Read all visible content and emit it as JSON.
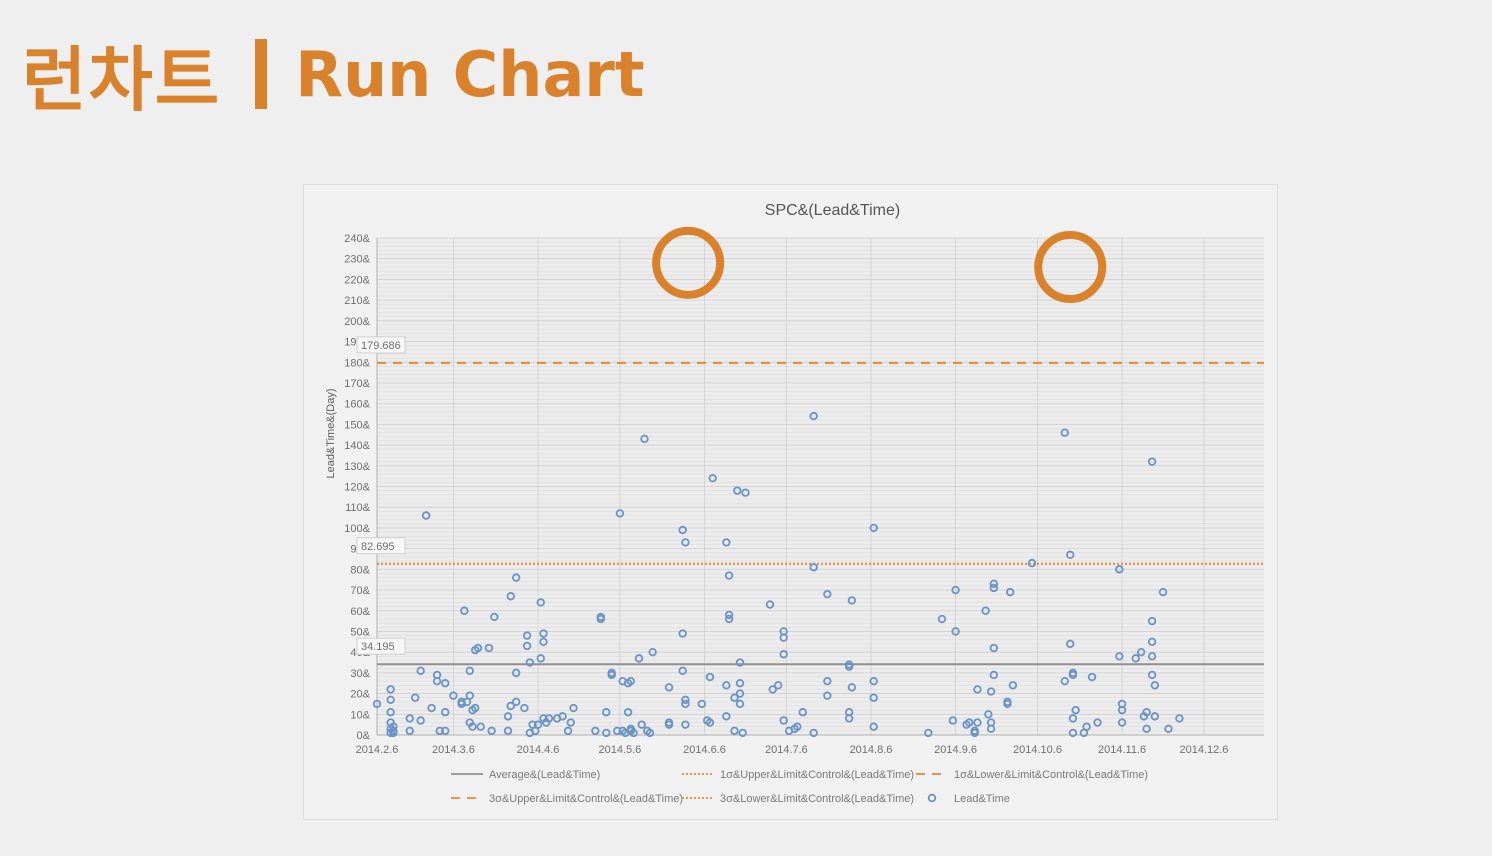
{
  "slide": {
    "title_ko": "런차트",
    "title_en": "Run Chart"
  },
  "chart_data": {
    "type": "scatter",
    "title": "SPC&(Lead&Time)",
    "ylabel": "Lead&Time&(Day)",
    "xlabel": "",
    "x_start_date": "2014-02-06",
    "x_range_days": [
      0,
      325
    ],
    "ylim": [
      0,
      240
    ],
    "y_ticks": [
      "0&",
      "10&",
      "20&",
      "30&",
      "40&",
      "50&",
      "60&",
      "70&",
      "80&",
      "90&",
      "100&",
      "110&",
      "120&",
      "130&",
      "140&",
      "150&",
      "160&",
      "170&",
      "180&",
      "190&",
      "200&",
      "210&",
      "220&",
      "230&",
      "240&"
    ],
    "x_ticks": [
      {
        "label": "2014.2.6",
        "day": 0
      },
      {
        "label": "2014.3.6",
        "day": 28
      },
      {
        "label": "2014.4.6",
        "day": 59
      },
      {
        "label": "2014.5.6",
        "day": 89
      },
      {
        "label": "2014.6.6",
        "day": 120
      },
      {
        "label": "2014.7.6",
        "day": 150
      },
      {
        "label": "2014.8.6",
        "day": 181
      },
      {
        "label": "2014.9.6",
        "day": 212
      },
      {
        "label": "2014.10.6",
        "day": 242
      },
      {
        "label": "2014.11.6",
        "day": 273
      },
      {
        "label": "2014.12.6",
        "day": 303
      }
    ],
    "grid": true,
    "legend_position": "bottom",
    "reference_lines": [
      {
        "name": "Average&(Lead&Time)",
        "value": 34.195,
        "label": "34.195",
        "style": "solid",
        "color": "#8f8f8f"
      },
      {
        "name": "1σ&Upper&Limit&Control&(Lead&Time)",
        "value": 82.695,
        "label": "82.695",
        "style": "dotted",
        "color": "#e08a3c"
      },
      {
        "name": "1σ&Lower&Limit&Control&(Lead&Time)",
        "value": null,
        "label": "",
        "style": "dashed",
        "color": "#e08a3c"
      },
      {
        "name": "3σ&Upper&Limit&Control&(Lead&Time)",
        "value": 179.686,
        "label": "179.686",
        "style": "dashed",
        "color": "#e08a3c"
      },
      {
        "name": "3σ&Lower&Limit&Control&(Lead&Time)",
        "value": null,
        "label": "",
        "style": "dotted",
        "color": "#e08a3c"
      }
    ],
    "legend": [
      {
        "name": "Average&(Lead&Time)",
        "symbol": "solid-line",
        "color": "#8f8f8f"
      },
      {
        "name": "1σ&Upper&Limit&Control&(Lead&Time)",
        "symbol": "dotted-line",
        "color": "#e08a3c"
      },
      {
        "name": "1σ&Lower&Limit&Control&(Lead&Time)",
        "symbol": "dashed-line",
        "color": "#e08a3c"
      },
      {
        "name": "3σ&Upper&Limit&Control&(Lead&Time)",
        "symbol": "dashed-line",
        "color": "#e08a3c"
      },
      {
        "name": "3σ&Lower&Limit&Control&(Lead&Time)",
        "symbol": "dotted-line",
        "color": "#e08a3c"
      },
      {
        "name": "Lead&Time",
        "symbol": "circle",
        "color": "#6a93c9"
      }
    ],
    "series": [
      {
        "name": "Lead&Time",
        "color": "#6a93c9",
        "points": [
          [
            0,
            15
          ],
          [
            5,
            22
          ],
          [
            5,
            17
          ],
          [
            5,
            11
          ],
          [
            5,
            6
          ],
          [
            5,
            3
          ],
          [
            5,
            1
          ],
          [
            6,
            4
          ],
          [
            6,
            2
          ],
          [
            6,
            1
          ],
          [
            12,
            8
          ],
          [
            12,
            2
          ],
          [
            14,
            18
          ],
          [
            16,
            7
          ],
          [
            16,
            31
          ],
          [
            18,
            106
          ],
          [
            20,
            13
          ],
          [
            22,
            29
          ],
          [
            22,
            26
          ],
          [
            23,
            2
          ],
          [
            25,
            2
          ],
          [
            25,
            11
          ],
          [
            25,
            25
          ],
          [
            28,
            19
          ],
          [
            31,
            16
          ],
          [
            31,
            15
          ],
          [
            32,
            60
          ],
          [
            33,
            16
          ],
          [
            34,
            6
          ],
          [
            34,
            19
          ],
          [
            34,
            31
          ],
          [
            35,
            12
          ],
          [
            35,
            4
          ],
          [
            36,
            13
          ],
          [
            36,
            41
          ],
          [
            37,
            42
          ],
          [
            38,
            4
          ],
          [
            41,
            42
          ],
          [
            42,
            2
          ],
          [
            43,
            57
          ],
          [
            48,
            9
          ],
          [
            48,
            2
          ],
          [
            49,
            67
          ],
          [
            49,
            14
          ],
          [
            51,
            76
          ],
          [
            51,
            16
          ],
          [
            51,
            30
          ],
          [
            54,
            13
          ],
          [
            55,
            48
          ],
          [
            55,
            43
          ],
          [
            56,
            35
          ],
          [
            56,
            1
          ],
          [
            57,
            5
          ],
          [
            58,
            2
          ],
          [
            59,
            5
          ],
          [
            60,
            64
          ],
          [
            60,
            37
          ],
          [
            61,
            45
          ],
          [
            61,
            49
          ],
          [
            61,
            8
          ],
          [
            62,
            6
          ],
          [
            63,
            8
          ],
          [
            66,
            8
          ],
          [
            68,
            9
          ],
          [
            70,
            2
          ],
          [
            71,
            6
          ],
          [
            72,
            13
          ],
          [
            80,
            2
          ],
          [
            82,
            57
          ],
          [
            82,
            56
          ],
          [
            84,
            11
          ],
          [
            84,
            1
          ],
          [
            86,
            30
          ],
          [
            86,
            29
          ],
          [
            88,
            2
          ],
          [
            89,
            107
          ],
          [
            90,
            26
          ],
          [
            90,
            2
          ],
          [
            91,
            1
          ],
          [
            92,
            11
          ],
          [
            92,
            25
          ],
          [
            93,
            3
          ],
          [
            93,
            26
          ],
          [
            93,
            2
          ],
          [
            94,
            1
          ],
          [
            96,
            37
          ],
          [
            97,
            5
          ],
          [
            98,
            143
          ],
          [
            99,
            2
          ],
          [
            100,
            1
          ],
          [
            101,
            40
          ],
          [
            107,
            23
          ],
          [
            107,
            5
          ],
          [
            107,
            6
          ],
          [
            112,
            99
          ],
          [
            112,
            49
          ],
          [
            112,
            31
          ],
          [
            113,
            93
          ],
          [
            113,
            17
          ],
          [
            113,
            15
          ],
          [
            113,
            5
          ],
          [
            119,
            15
          ],
          [
            121,
            7
          ],
          [
            122,
            6
          ],
          [
            122,
            28
          ],
          [
            123,
            124
          ],
          [
            128,
            9
          ],
          [
            128,
            24
          ],
          [
            128,
            93
          ],
          [
            129,
            77
          ],
          [
            129,
            58
          ],
          [
            129,
            56
          ],
          [
            131,
            18
          ],
          [
            131,
            2
          ],
          [
            132,
            118
          ],
          [
            133,
            35
          ],
          [
            133,
            25
          ],
          [
            133,
            20
          ],
          [
            133,
            15
          ],
          [
            134,
            1
          ],
          [
            135,
            117
          ],
          [
            144,
            63
          ],
          [
            145,
            22
          ],
          [
            147,
            24
          ],
          [
            149,
            50
          ],
          [
            149,
            47
          ],
          [
            149,
            39
          ],
          [
            149,
            7
          ],
          [
            151,
            2
          ],
          [
            153,
            3
          ],
          [
            154,
            4
          ],
          [
            156,
            11
          ],
          [
            160,
            1
          ],
          [
            160,
            154
          ],
          [
            160,
            81
          ],
          [
            165,
            68
          ],
          [
            165,
            26
          ],
          [
            165,
            19
          ],
          [
            173,
            34
          ],
          [
            173,
            33
          ],
          [
            173,
            11
          ],
          [
            173,
            8
          ],
          [
            174,
            65
          ],
          [
            174,
            23
          ],
          [
            182,
            100
          ],
          [
            182,
            26
          ],
          [
            182,
            18
          ],
          [
            182,
            4
          ],
          [
            202,
            1
          ],
          [
            207,
            56
          ],
          [
            211,
            7
          ],
          [
            212,
            50
          ],
          [
            212,
            70
          ],
          [
            216,
            5
          ],
          [
            217,
            6
          ],
          [
            219,
            2
          ],
          [
            219,
            1
          ],
          [
            220,
            22
          ],
          [
            220,
            6
          ],
          [
            223,
            60
          ],
          [
            224,
            10
          ],
          [
            225,
            21
          ],
          [
            225,
            6
          ],
          [
            225,
            3
          ],
          [
            226,
            73
          ],
          [
            226,
            71
          ],
          [
            226,
            42
          ],
          [
            226,
            29
          ],
          [
            231,
            15
          ],
          [
            231,
            16
          ],
          [
            232,
            69
          ],
          [
            233,
            24
          ],
          [
            240,
            83
          ],
          [
            252,
            146
          ],
          [
            252,
            26
          ],
          [
            254,
            87
          ],
          [
            254,
            44
          ],
          [
            255,
            29
          ],
          [
            255,
            30
          ],
          [
            255,
            1
          ],
          [
            255,
            8
          ],
          [
            256,
            12
          ],
          [
            259,
            1
          ],
          [
            260,
            4
          ],
          [
            262,
            28
          ],
          [
            264,
            6
          ],
          [
            272,
            80
          ],
          [
            272,
            80
          ],
          [
            272,
            38
          ],
          [
            273,
            15
          ],
          [
            273,
            12
          ],
          [
            273,
            6
          ],
          [
            278,
            37
          ],
          [
            280,
            40
          ],
          [
            281,
            9
          ],
          [
            282,
            3
          ],
          [
            282,
            11
          ],
          [
            284,
            132
          ],
          [
            284,
            55
          ],
          [
            284,
            45
          ],
          [
            284,
            38
          ],
          [
            284,
            29
          ],
          [
            285,
            24
          ],
          [
            285,
            9
          ],
          [
            288,
            69
          ],
          [
            290,
            3
          ],
          [
            294,
            8
          ]
        ]
      }
    ],
    "annotations": [
      {
        "type": "highlight-circle",
        "x": 114,
        "y": 228,
        "color": "#d9822b"
      },
      {
        "type": "highlight-circle",
        "x": 254,
        "y": 226,
        "color": "#d9822b"
      }
    ]
  }
}
